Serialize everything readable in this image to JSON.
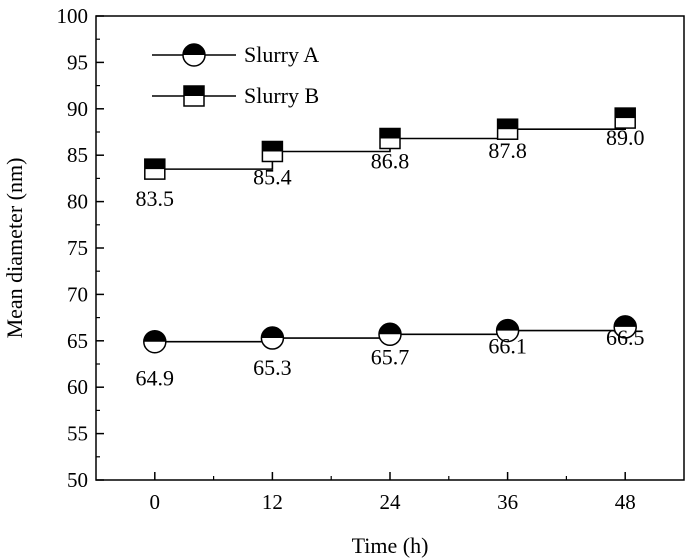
{
  "chart_data": {
    "type": "line",
    "title": "",
    "xlabel": "Time (h)",
    "ylabel": "Mean diameter (nm)",
    "x": [
      0,
      12,
      24,
      36,
      48
    ],
    "xlim": [
      -6,
      54
    ],
    "ylim": [
      50,
      100
    ],
    "xticks": [
      "0",
      "12",
      "24",
      "36",
      "48"
    ],
    "yticks": [
      "50",
      "55",
      "60",
      "65",
      "70",
      "75",
      "80",
      "85",
      "90",
      "95",
      "100"
    ],
    "grid": false,
    "legend": "top-left",
    "series": [
      {
        "name": "Slurry A",
        "marker": "half-filled-circle",
        "values": [
          64.9,
          65.3,
          65.7,
          66.1,
          66.5
        ],
        "labels": [
          "64.9",
          "65.3",
          "65.7",
          "66.1",
          "66.5"
        ]
      },
      {
        "name": "Slurry B",
        "marker": "half-filled-square",
        "values": [
          83.5,
          85.4,
          86.8,
          87.8,
          89.0
        ],
        "labels": [
          "83.5",
          "85.4",
          "86.8",
          "87.8",
          "89.0"
        ]
      }
    ]
  }
}
